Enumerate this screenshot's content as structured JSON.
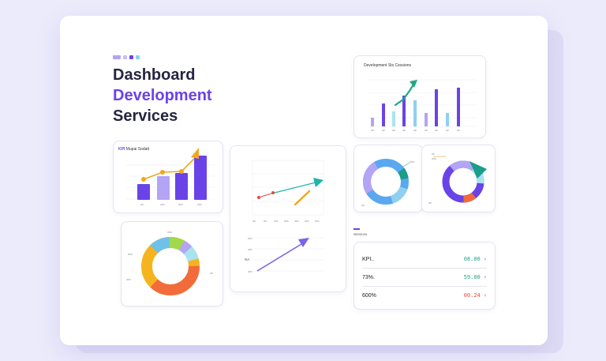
{
  "hero": {
    "line1": "Dashboard",
    "line2": "Development",
    "line3": "Services",
    "accent_color": "#6a43e8",
    "dots": [
      "#b3a4f5",
      "#c7bdf8",
      "#6a43e8",
      "#8fd0f0"
    ]
  },
  "top_chart": {
    "title": "Development Sts Cessions",
    "ticks_y": [
      "",
      "",
      "",
      "",
      ""
    ],
    "ticks_x": [
      "ab",
      "ab",
      "ab",
      "ab",
      "ab",
      "ab",
      "ab",
      "ab",
      "ab"
    ],
    "colors": [
      "#b3a4f5",
      "#6a43e8",
      "#a8e4f0",
      "#6a43e8",
      "#8fd0f0",
      "#b3a4f5",
      "#6a43e8",
      "#8fd0f0",
      "#6a43e8"
    ],
    "trend_color": "#1fa882"
  },
  "bar_line_card": {
    "title": "Mupai Sodatt",
    "tag": "KPI",
    "x_labels": [
      "ab",
      "abs",
      "abs",
      "abs"
    ],
    "bar_colors": [
      "#6a43e8",
      "#b3a4f5",
      "#6a43e8",
      "#6a43e8"
    ],
    "line_color": "#f2a71b"
  },
  "trend_card": {
    "x_labels": [
      "ab",
      "ab",
      "abs",
      "abs",
      "abs",
      "abs",
      "abs"
    ],
    "lower_labels": [
      "abs",
      "abs",
      "abs"
    ],
    "lower_tag": "NA",
    "teal_arrow": "#1fb5a8",
    "orange_arrow": "#f2a71b",
    "purple_arrow": "#7b61e8",
    "red_dot": "#e64a3d"
  },
  "donut_blue": {
    "labels": [
      "aba",
      "ab"
    ],
    "colors": [
      "#5aa8f0",
      "#b3a4f5",
      "#1a9e8a",
      "#8fd0f0"
    ]
  },
  "donut_purple": {
    "labels": [
      "ab",
      "aba",
      "ab"
    ],
    "colors": [
      "#6a43e8",
      "#b3a4f5",
      "#1a9e8a",
      "#f26b3a",
      "#a8e4f0"
    ]
  },
  "donut_orange": {
    "labels": [
      "aba",
      "aba",
      "aba",
      "ab"
    ],
    "colors": [
      "#f26b3a",
      "#f5b41f",
      "#6fc1ea",
      "#a0d94a",
      "#b3a4f5"
    ]
  },
  "kpi_panel": {
    "section_label": "Services",
    "rows": [
      {
        "label": "KPI..",
        "value": "08.00",
        "color": "#1fa882"
      },
      {
        "label": "73%.",
        "value": "59.00",
        "color": "#1fa882"
      },
      {
        "label": "600%",
        "value": "00.24",
        "color": "#e64a3d"
      }
    ]
  }
}
